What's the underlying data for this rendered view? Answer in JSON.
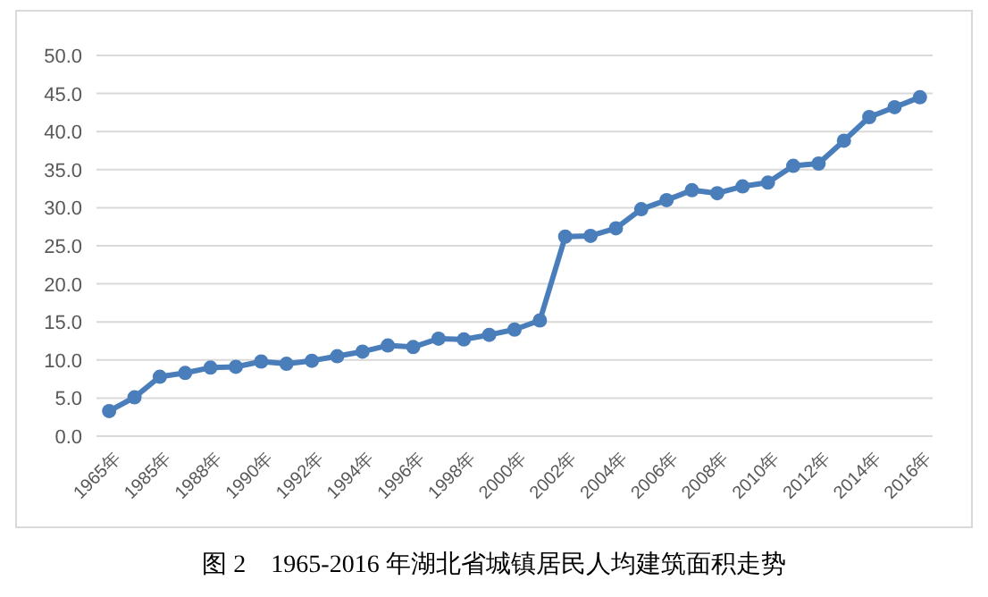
{
  "chart_data": {
    "type": "line",
    "categories": [
      "1965年",
      null,
      "1985年",
      null,
      "1988年",
      null,
      "1990年",
      null,
      "1992年",
      null,
      "1994年",
      null,
      "1996年",
      null,
      "1998年",
      null,
      "2000年",
      null,
      "2002年",
      null,
      "2004年",
      null,
      "2006年",
      null,
      "2008年",
      null,
      "2010年",
      null,
      "2012年",
      null,
      "2014年",
      null,
      "2016年"
    ],
    "series": [
      {
        "color": "#4a7ebb",
        "values": [
          3.3,
          5.1,
          7.8,
          8.3,
          9.0,
          9.1,
          9.8,
          9.5,
          9.9,
          10.5,
          11.1,
          11.9,
          11.7,
          12.8,
          12.7,
          13.3,
          14.0,
          15.2,
          26.2,
          26.3,
          27.3,
          29.8,
          31.0,
          32.3,
          31.9,
          32.8,
          33.3,
          35.5,
          35.8,
          38.8,
          41.9,
          43.2,
          44.5
        ]
      }
    ],
    "ylim": [
      0,
      50
    ],
    "yticks": [
      {
        "value": 0,
        "label": "0.0"
      },
      {
        "value": 5,
        "label": "5.0"
      },
      {
        "value": 10,
        "label": "10.0"
      },
      {
        "value": 15,
        "label": "15.0"
      },
      {
        "value": 20,
        "label": "20.0"
      },
      {
        "value": 25,
        "label": "25.0"
      },
      {
        "value": 30,
        "label": "30.0"
      },
      {
        "value": 35,
        "label": "35.0"
      },
      {
        "value": 40,
        "label": "40.0"
      },
      {
        "value": 45,
        "label": "45.0"
      },
      {
        "value": 50,
        "label": "50.0"
      }
    ],
    "grid": "y",
    "marker": "circle",
    "line_style": "solid",
    "annotations": [
      "图 2　1965-2016 年湖北省城镇居民人均建筑面积走势"
    ]
  }
}
